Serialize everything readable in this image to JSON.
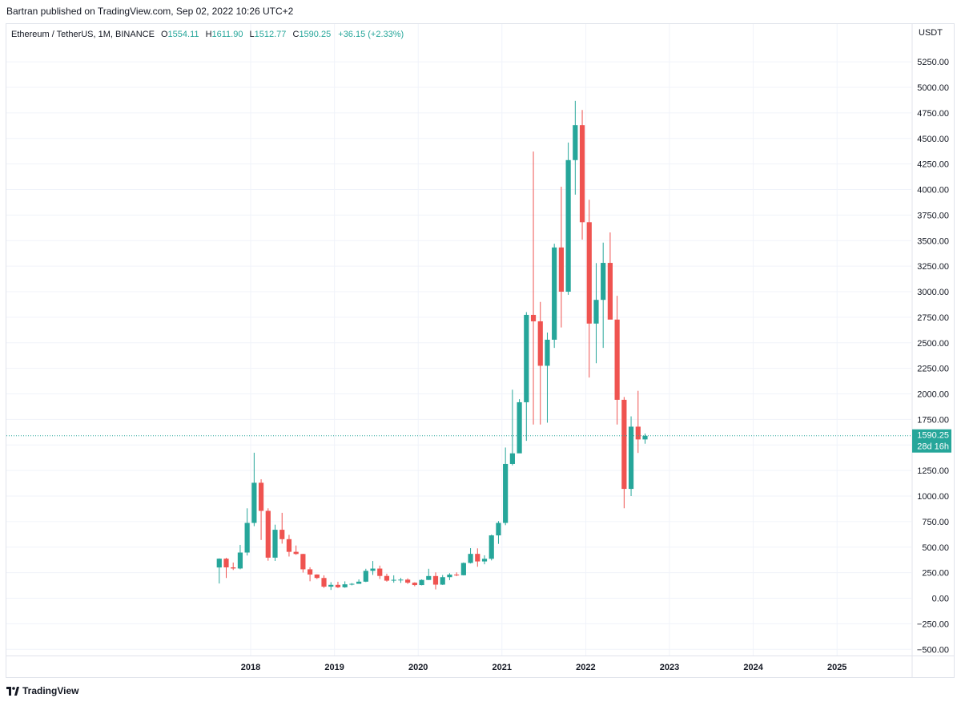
{
  "publisher_line": "Bartran published on TradingView.com, Sep 02, 2022 10:26 UTC+2",
  "legend": {
    "symbol": "Ethereum / TetherUS, 1M, BINANCE",
    "o_label": "O",
    "o_value": "1554.11",
    "h_label": "H",
    "h_value": "1611.90",
    "l_label": "L",
    "l_value": "1512.77",
    "c_label": "C",
    "c_value": "1590.25",
    "change": "+36.15 (+2.33%)"
  },
  "footer": {
    "brand": "TradingView"
  },
  "colors": {
    "up": "#26a69a",
    "down": "#ef5350",
    "grid": "#f0f3fa",
    "price_tag": "#26a69a"
  },
  "chart_data": {
    "type": "candlestick",
    "currency": "USDT",
    "y_ticks": [
      "5250.00",
      "5000.00",
      "4750.00",
      "4500.00",
      "4250.00",
      "4000.00",
      "3750.00",
      "3500.00",
      "3250.00",
      "3000.00",
      "2750.00",
      "2500.00",
      "2250.00",
      "2000.00",
      "1750.00",
      "1500.00",
      "1250.00",
      "1000.00",
      "750.00",
      "500.00",
      "250.00",
      "0.00",
      "−250.00",
      "−500.00"
    ],
    "y_tick_values": [
      5250,
      5000,
      4750,
      4500,
      4250,
      4000,
      3750,
      3500,
      3250,
      3000,
      2750,
      2500,
      2250,
      2000,
      1750,
      1500,
      1250,
      1000,
      750,
      500,
      250,
      0,
      -250,
      -500
    ],
    "x_ticks": [
      "2018",
      "2019",
      "2020",
      "2021",
      "2022",
      "2023",
      "2024",
      "2025"
    ],
    "ylim": [
      -500,
      5250
    ],
    "last_price": {
      "value": 1590.25,
      "label": "1590.25",
      "countdown": "28d 16h"
    },
    "candles": [
      {
        "d": "2017-08",
        "o": 301,
        "h": 390,
        "l": 144,
        "c": 387
      },
      {
        "d": "2017-09",
        "o": 387,
        "h": 395,
        "l": 198,
        "c": 302
      },
      {
        "d": "2017-10",
        "o": 302,
        "h": 349,
        "l": 276,
        "c": 291
      },
      {
        "d": "2017-11",
        "o": 291,
        "h": 522,
        "l": 283,
        "c": 447
      },
      {
        "d": "2017-12",
        "o": 447,
        "h": 880,
        "l": 418,
        "c": 737
      },
      {
        "d": "2018-01",
        "o": 737,
        "h": 1424,
        "l": 705,
        "c": 1130
      },
      {
        "d": "2018-02",
        "o": 1130,
        "h": 1164,
        "l": 570,
        "c": 855
      },
      {
        "d": "2018-03",
        "o": 855,
        "h": 880,
        "l": 367,
        "c": 397
      },
      {
        "d": "2018-04",
        "o": 397,
        "h": 720,
        "l": 365,
        "c": 670
      },
      {
        "d": "2018-05",
        "o": 670,
        "h": 836,
        "l": 534,
        "c": 578
      },
      {
        "d": "2018-06",
        "o": 578,
        "h": 620,
        "l": 408,
        "c": 454
      },
      {
        "d": "2018-07",
        "o": 454,
        "h": 516,
        "l": 425,
        "c": 433
      },
      {
        "d": "2018-08",
        "o": 433,
        "h": 435,
        "l": 251,
        "c": 283
      },
      {
        "d": "2018-09",
        "o": 283,
        "h": 303,
        "l": 166,
        "c": 232
      },
      {
        "d": "2018-10",
        "o": 232,
        "h": 234,
        "l": 188,
        "c": 198
      },
      {
        "d": "2018-11",
        "o": 198,
        "h": 224,
        "l": 101,
        "c": 113
      },
      {
        "d": "2018-12",
        "o": 113,
        "h": 157,
        "l": 81,
        "c": 131
      },
      {
        "d": "2019-01",
        "o": 131,
        "h": 161,
        "l": 100,
        "c": 107
      },
      {
        "d": "2019-02",
        "o": 107,
        "h": 165,
        "l": 102,
        "c": 136
      },
      {
        "d": "2019-03",
        "o": 136,
        "h": 148,
        "l": 126,
        "c": 141
      },
      {
        "d": "2019-04",
        "o": 141,
        "h": 184,
        "l": 150,
        "c": 162
      },
      {
        "d": "2019-05",
        "o": 162,
        "h": 288,
        "l": 158,
        "c": 268
      },
      {
        "d": "2019-06",
        "o": 268,
        "h": 364,
        "l": 228,
        "c": 290
      },
      {
        "d": "2019-07",
        "o": 290,
        "h": 319,
        "l": 188,
        "c": 218
      },
      {
        "d": "2019-08",
        "o": 218,
        "h": 240,
        "l": 162,
        "c": 172
      },
      {
        "d": "2019-09",
        "o": 172,
        "h": 224,
        "l": 152,
        "c": 180
      },
      {
        "d": "2019-10",
        "o": 180,
        "h": 199,
        "l": 150,
        "c": 182
      },
      {
        "d": "2019-11",
        "o": 182,
        "h": 195,
        "l": 140,
        "c": 152
      },
      {
        "d": "2019-12",
        "o": 152,
        "h": 156,
        "l": 117,
        "c": 129
      },
      {
        "d": "2020-01",
        "o": 129,
        "h": 184,
        "l": 126,
        "c": 179
      },
      {
        "d": "2020-02",
        "o": 179,
        "h": 288,
        "l": 178,
        "c": 217
      },
      {
        "d": "2020-03",
        "o": 217,
        "h": 253,
        "l": 86,
        "c": 133
      },
      {
        "d": "2020-04",
        "o": 133,
        "h": 227,
        "l": 130,
        "c": 206
      },
      {
        "d": "2020-05",
        "o": 206,
        "h": 245,
        "l": 177,
        "c": 231
      },
      {
        "d": "2020-06",
        "o": 231,
        "h": 253,
        "l": 216,
        "c": 225
      },
      {
        "d": "2020-07",
        "o": 225,
        "h": 350,
        "l": 223,
        "c": 345
      },
      {
        "d": "2020-08",
        "o": 345,
        "h": 490,
        "l": 340,
        "c": 434
      },
      {
        "d": "2020-09",
        "o": 434,
        "h": 488,
        "l": 308,
        "c": 360
      },
      {
        "d": "2020-10",
        "o": 360,
        "h": 420,
        "l": 332,
        "c": 386
      },
      {
        "d": "2020-11",
        "o": 386,
        "h": 622,
        "l": 370,
        "c": 615
      },
      {
        "d": "2020-12",
        "o": 615,
        "h": 755,
        "l": 532,
        "c": 737
      },
      {
        "d": "2021-01",
        "o": 737,
        "h": 1475,
        "l": 715,
        "c": 1314
      },
      {
        "d": "2021-02",
        "o": 1314,
        "h": 2041,
        "l": 1300,
        "c": 1418
      },
      {
        "d": "2021-03",
        "o": 1418,
        "h": 1948,
        "l": 1440,
        "c": 1918
      },
      {
        "d": "2021-04",
        "o": 1918,
        "h": 2800,
        "l": 1540,
        "c": 2773
      },
      {
        "d": "2021-05",
        "o": 2773,
        "h": 4372,
        "l": 1700,
        "c": 2710
      },
      {
        "d": "2021-06",
        "o": 2710,
        "h": 2900,
        "l": 1700,
        "c": 2275
      },
      {
        "d": "2021-07",
        "o": 2275,
        "h": 2600,
        "l": 1718,
        "c": 2530
      },
      {
        "d": "2021-08",
        "o": 2530,
        "h": 3470,
        "l": 2450,
        "c": 3433
      },
      {
        "d": "2021-09",
        "o": 3433,
        "h": 4027,
        "l": 2650,
        "c": 3000
      },
      {
        "d": "2021-10",
        "o": 3000,
        "h": 4460,
        "l": 2970,
        "c": 4288
      },
      {
        "d": "2021-11",
        "o": 4288,
        "h": 4868,
        "l": 3950,
        "c": 4630
      },
      {
        "d": "2021-12",
        "o": 4630,
        "h": 4778,
        "l": 3510,
        "c": 3680
      },
      {
        "d": "2022-01",
        "o": 3680,
        "h": 3900,
        "l": 2160,
        "c": 2688
      },
      {
        "d": "2022-02",
        "o": 2688,
        "h": 3280,
        "l": 2300,
        "c": 2920
      },
      {
        "d": "2022-03",
        "o": 2920,
        "h": 3480,
        "l": 2450,
        "c": 3282
      },
      {
        "d": "2022-04",
        "o": 3282,
        "h": 3580,
        "l": 2780,
        "c": 2727
      },
      {
        "d": "2022-05",
        "o": 2727,
        "h": 2960,
        "l": 1700,
        "c": 1942
      },
      {
        "d": "2022-06",
        "o": 1942,
        "h": 1970,
        "l": 880,
        "c": 1070
      },
      {
        "d": "2022-07",
        "o": 1070,
        "h": 1780,
        "l": 1000,
        "c": 1679
      },
      {
        "d": "2022-08",
        "o": 1679,
        "h": 2030,
        "l": 1422,
        "c": 1554
      },
      {
        "d": "2022-09",
        "o": 1554,
        "h": 1612,
        "l": 1512,
        "c": 1590
      }
    ]
  }
}
